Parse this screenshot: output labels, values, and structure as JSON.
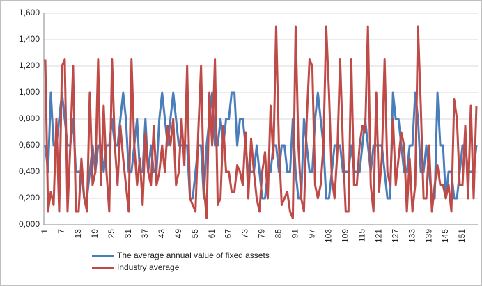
{
  "chart_data": {
    "type": "line",
    "categories": [
      1,
      null,
      null,
      null,
      null,
      null,
      7,
      null,
      null,
      null,
      null,
      null,
      13,
      null,
      null,
      null,
      null,
      null,
      19,
      null,
      null,
      null,
      null,
      null,
      25,
      null,
      null,
      null,
      null,
      null,
      31,
      null,
      null,
      null,
      null,
      null,
      37,
      null,
      null,
      null,
      null,
      null,
      43,
      null,
      null,
      null,
      null,
      null,
      49,
      null,
      null,
      null,
      null,
      null,
      55,
      null,
      null,
      null,
      null,
      null,
      61,
      null,
      null,
      null,
      null,
      null,
      67,
      null,
      null,
      null,
      null,
      null,
      73,
      null,
      null,
      null,
      null,
      null,
      79,
      null,
      null,
      null,
      null,
      null,
      85,
      null,
      null,
      null,
      null,
      null,
      91,
      null,
      null,
      null,
      null,
      null,
      97,
      null,
      null,
      null,
      null,
      null,
      103,
      null,
      null,
      null,
      null,
      null,
      109,
      null,
      null,
      null,
      null,
      null,
      115,
      null,
      null,
      null,
      null,
      null,
      121,
      null,
      null,
      null,
      null,
      null,
      127,
      null,
      null,
      null,
      null,
      null,
      133,
      null,
      null,
      null,
      null,
      null,
      139,
      null,
      null,
      null,
      null,
      null,
      145,
      null,
      null,
      null,
      null,
      null,
      151,
      null,
      null,
      null,
      null,
      null
    ],
    "series": [
      {
        "name": "The average annual value of fixed assets",
        "color": "#4a7ebb",
        "values": [
          0.6,
          0.4,
          1.0,
          0.6,
          0.6,
          0.8,
          1.0,
          0.8,
          0.6,
          0.6,
          0.8,
          0.4,
          0.4,
          0.4,
          0.2,
          0.2,
          0.4,
          0.6,
          0.4,
          0.6,
          0.6,
          0.4,
          0.6,
          0.6,
          0.8,
          0.6,
          0.6,
          0.8,
          1.0,
          0.8,
          0.4,
          0.4,
          0.6,
          0.8,
          0.4,
          0.4,
          0.8,
          0.4,
          0.6,
          0.4,
          0.4,
          0.8,
          1.0,
          0.8,
          0.6,
          0.8,
          1.0,
          0.8,
          0.6,
          0.6,
          0.6,
          0.6,
          0.2,
          0.2,
          0.4,
          0.6,
          0.6,
          0.2,
          0.6,
          0.8,
          1.0,
          0.6,
          0.6,
          0.8,
          0.6,
          0.8,
          0.8,
          1.0,
          1.0,
          0.6,
          0.8,
          0.8,
          0.6,
          0.4,
          0.4,
          0.4,
          0.6,
          0.4,
          0.2,
          0.2,
          0.4,
          0.4,
          0.6,
          0.6,
          0.4,
          0.6,
          0.6,
          0.4,
          0.4,
          0.8,
          0.4,
          0.2,
          0.2,
          0.8,
          0.6,
          0.4,
          0.4,
          0.8,
          1.0,
          0.8,
          0.6,
          0.2,
          0.2,
          0.4,
          0.6,
          0.6,
          0.6,
          0.4,
          0.4,
          0.4,
          0.6,
          0.4,
          0.4,
          0.4,
          0.6,
          0.8,
          0.6,
          0.4,
          0.6,
          0.6,
          0.6,
          0.6,
          0.4,
          0.2,
          0.2,
          1.0,
          0.8,
          0.8,
          0.6,
          0.4,
          0.4,
          0.6,
          0.6,
          1.0,
          0.8,
          0.4,
          0.4,
          0.6,
          0.4,
          0.2,
          0.2,
          1.0,
          0.6,
          0.6,
          0.2,
          0.4,
          0.4,
          0.2,
          0.2,
          0.4,
          0.6,
          0.6,
          0.4,
          0.4,
          0.4,
          0.6
        ]
      },
      {
        "name": "Industry average",
        "color": "#be4b48",
        "values": [
          1.25,
          0.1,
          0.25,
          0.15,
          0.8,
          0.1,
          1.2,
          1.25,
          0.1,
          0.6,
          1.2,
          0.1,
          0.1,
          0.5,
          0.2,
          0.1,
          1.0,
          0.3,
          0.4,
          1.25,
          0.3,
          0.9,
          0.4,
          0.1,
          1.25,
          0.6,
          0.3,
          0.75,
          0.5,
          0.3,
          0.1,
          1.25,
          0.6,
          0.3,
          0.5,
          0.15,
          0.7,
          0.4,
          0.3,
          0.75,
          0.3,
          0.4,
          0.6,
          0.4,
          0.75,
          0.6,
          0.8,
          0.3,
          0.4,
          0.8,
          0.45,
          1.2,
          0.2,
          0.15,
          0.1,
          0.7,
          1.2,
          0.3,
          0.05,
          1.0,
          0.6,
          1.25,
          0.15,
          0.2,
          0.75,
          0.4,
          0.4,
          0.25,
          0.25,
          0.45,
          0.4,
          0.3,
          0.7,
          0.2,
          0.65,
          0.4,
          0.2,
          0.1,
          0.4,
          0.55,
          0.2,
          0.9,
          0.5,
          1.5,
          0.6,
          0.15,
          0.2,
          0.25,
          0.1,
          0.05,
          1.5,
          0.6,
          0.2,
          0.1,
          0.8,
          1.25,
          1.2,
          0.3,
          0.2,
          0.3,
          0.6,
          1.5,
          1.0,
          0.35,
          0.2,
          0.55,
          1.25,
          0.6,
          0.1,
          0.1,
          1.25,
          0.3,
          0.3,
          0.6,
          0.75,
          0.7,
          1.5,
          0.3,
          0.1,
          1.0,
          0.25,
          0.5,
          1.25,
          0.4,
          0.3,
          0.8,
          0.3,
          0.5,
          0.7,
          0.6,
          0.1,
          0.5,
          0.1,
          0.3,
          1.5,
          0.9,
          0.2,
          0.2,
          0.6,
          0.1,
          0.3,
          0.45,
          0.3,
          0.3,
          0.2,
          0.3,
          0.1,
          0.95,
          0.8,
          0.3,
          0.3,
          0.75,
          0.2,
          0.9,
          0.2,
          0.9
        ]
      }
    ],
    "ylim": [
      0,
      1.6
    ],
    "yticks": [
      {
        "value": 0,
        "label": "0,000"
      },
      {
        "value": 0.2,
        "label": "0,200"
      },
      {
        "value": 0.4,
        "label": "0,400"
      },
      {
        "value": 0.6,
        "label": "0,600"
      },
      {
        "value": 0.8,
        "label": "0,800"
      },
      {
        "value": 1.0,
        "label": "1,000"
      },
      {
        "value": 1.2,
        "label": "1,200"
      },
      {
        "value": 1.4,
        "label": "1,400"
      },
      {
        "value": 1.6,
        "label": "1,600"
      }
    ],
    "grid": true,
    "legend": "bottom"
  }
}
